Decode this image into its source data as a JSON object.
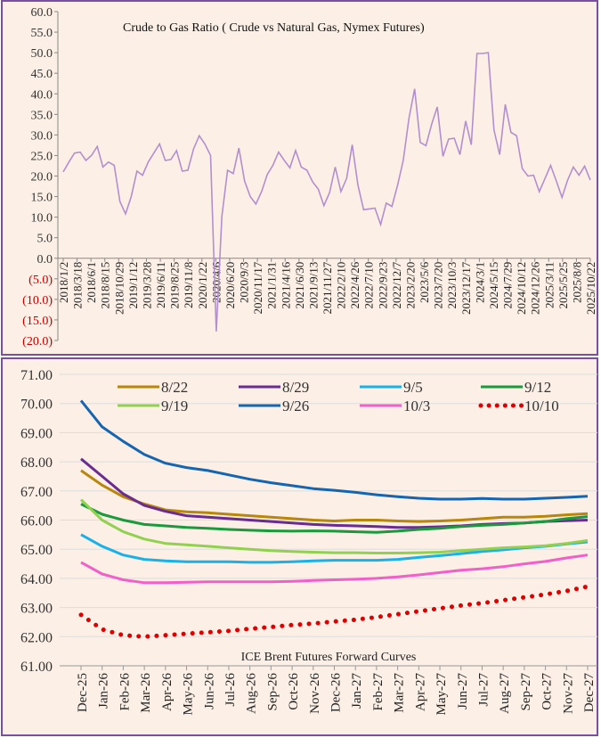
{
  "chart_data": [
    {
      "type": "line",
      "title": "Crude to Gas Ratio ( Crude vs Natural Gas, Nymex Futures)",
      "ylim": [
        -20,
        60
      ],
      "yticks": [
        "60.0",
        "55.0",
        "50.0",
        "45.0",
        "40.0",
        "35.0",
        "30.0",
        "25.0",
        "20.0",
        "15.0",
        "10.0",
        "5.0",
        "0.0",
        "(5.0)",
        "(10.0)",
        "(15.0)",
        "(20.0)"
      ],
      "negative_tick_color": "#c00000",
      "line_color": "#b28fce",
      "xtick_labels": [
        "2018/1/2",
        "2018/3/18",
        "2018/6/1",
        "2018/8/15",
        "2018/10/29",
        "2019/1/12",
        "2019/3/28",
        "2019/6/11",
        "2019/8/25",
        "2019/11/8",
        "2020/1/22",
        "2020/4/6",
        "2020/6/20",
        "2020/9/3",
        "2020/11/17",
        "2021/1/31",
        "2021/4/16",
        "2021/6/30",
        "2021/9/13",
        "2021/11/27",
        "2022/2/10",
        "2022/4/26",
        "2022/7/10",
        "2022/9/23",
        "2022/12/7",
        "2023/2/20",
        "2023/5/6",
        "2023/7/20",
        "2023/10/3",
        "2023/12/17",
        "2024/3/1",
        "2024/5/15",
        "2024/7/29",
        "2024/10/12",
        "2024/12/26",
        "2025/3/11",
        "2025/5/25",
        "2025/8/8",
        "2025/10/22"
      ],
      "values": [
        21,
        24,
        25,
        24,
        25,
        25,
        26,
        24,
        24,
        22,
        12,
        12,
        15,
        20,
        22,
        24,
        25,
        26,
        25,
        24,
        25,
        23,
        22,
        26,
        28,
        29,
        25,
        -19,
        12,
        22,
        20,
        25,
        20,
        15,
        12,
        18,
        21,
        22,
        24,
        25,
        22,
        25,
        24,
        22,
        18,
        15,
        14,
        16,
        21,
        18,
        20,
        27,
        16,
        13,
        12,
        11,
        10,
        14,
        12,
        16,
        25,
        34,
        40,
        30,
        28,
        32,
        35,
        26,
        29,
        28,
        27,
        34,
        27,
        48,
        51,
        50,
        30,
        27,
        38,
        30,
        28,
        23,
        20,
        19,
        18,
        20,
        22,
        17,
        16,
        19,
        21,
        22,
        23,
        19
      ]
    },
    {
      "type": "line",
      "title": "ICE Brent Futures Forward Curves",
      "ylim": [
        61,
        71
      ],
      "yticks": [
        "71.00",
        "70.00",
        "69.00",
        "68.00",
        "67.00",
        "66.00",
        "65.00",
        "64.00",
        "63.00",
        "62.00",
        "61.00"
      ],
      "categories": [
        "Dec-25",
        "Jan-26",
        "Feb-26",
        "Mar-26",
        "Apr-26",
        "May-26",
        "Jun-26",
        "Jul-26",
        "Aug-26",
        "Sep-26",
        "Oct-26",
        "Nov-26",
        "Dec-26",
        "Jan-27",
        "Feb-27",
        "Mar-27",
        "Apr-27",
        "May-27",
        "Jun-27",
        "Jul-27",
        "Aug-27",
        "Sep-27",
        "Oct-27",
        "Nov-27",
        "Dec-27"
      ],
      "legend_placement": "top",
      "series": [
        {
          "name": "8/22",
          "color": "#b8860b",
          "values": [
            67.7,
            67.2,
            66.8,
            66.55,
            66.35,
            66.28,
            66.25,
            66.2,
            66.15,
            66.1,
            66.05,
            66.0,
            65.97,
            66.0,
            66.0,
            65.97,
            65.95,
            65.97,
            66.0,
            66.05,
            66.1,
            66.1,
            66.13,
            66.18,
            66.22
          ]
        },
        {
          "name": "8/29",
          "color": "#6a2c91",
          "values": [
            68.1,
            67.5,
            66.9,
            66.5,
            66.3,
            66.15,
            66.1,
            66.05,
            66.0,
            65.95,
            65.9,
            65.85,
            65.82,
            65.8,
            65.78,
            65.75,
            65.75,
            65.77,
            65.8,
            65.85,
            65.88,
            65.9,
            65.95,
            65.98,
            66.0
          ]
        },
        {
          "name": "9/5",
          "color": "#1ab0e8",
          "values": [
            65.5,
            65.1,
            64.8,
            64.65,
            64.6,
            64.57,
            64.57,
            64.57,
            64.55,
            64.55,
            64.57,
            64.6,
            64.62,
            64.62,
            64.62,
            64.65,
            64.72,
            64.78,
            64.85,
            64.92,
            64.98,
            65.05,
            65.1,
            65.18,
            65.25
          ]
        },
        {
          "name": "9/12",
          "color": "#1a9a3c",
          "values": [
            66.55,
            66.2,
            66.0,
            65.85,
            65.8,
            65.75,
            65.72,
            65.68,
            65.65,
            65.63,
            65.62,
            65.63,
            65.62,
            65.6,
            65.58,
            65.62,
            65.68,
            65.72,
            65.78,
            65.82,
            65.85,
            65.9,
            65.95,
            66.05,
            66.12
          ]
        },
        {
          "name": "9/19",
          "color": "#92d050",
          "values": [
            66.7,
            66.0,
            65.6,
            65.35,
            65.2,
            65.15,
            65.1,
            65.05,
            65.0,
            64.95,
            64.92,
            64.9,
            64.88,
            64.88,
            64.87,
            64.87,
            64.88,
            64.9,
            64.95,
            65.0,
            65.05,
            65.08,
            65.12,
            65.2,
            65.3
          ]
        },
        {
          "name": "9/26",
          "color": "#1565b0",
          "values": [
            70.1,
            69.2,
            68.7,
            68.25,
            67.95,
            67.8,
            67.7,
            67.55,
            67.4,
            67.28,
            67.18,
            67.08,
            67.02,
            66.95,
            66.87,
            66.8,
            66.75,
            66.72,
            66.72,
            66.74,
            66.72,
            66.72,
            66.75,
            66.78,
            66.82
          ]
        },
        {
          "name": "10/3",
          "color": "#f060c8",
          "values": [
            64.55,
            64.15,
            63.95,
            63.85,
            63.85,
            63.87,
            63.88,
            63.88,
            63.88,
            63.88,
            63.9,
            63.93,
            63.95,
            63.97,
            64.0,
            64.05,
            64.12,
            64.2,
            64.28,
            64.33,
            64.4,
            64.5,
            64.58,
            64.7,
            64.8
          ]
        },
        {
          "name": "10/10",
          "color": "#e00000",
          "dotted": true,
          "values": [
            62.75,
            62.25,
            62.05,
            62.0,
            62.05,
            62.1,
            62.15,
            62.2,
            62.27,
            62.33,
            62.4,
            62.45,
            62.52,
            62.58,
            62.67,
            62.77,
            62.87,
            62.97,
            63.07,
            63.15,
            63.25,
            63.35,
            63.45,
            63.57,
            63.72
          ]
        }
      ]
    }
  ]
}
